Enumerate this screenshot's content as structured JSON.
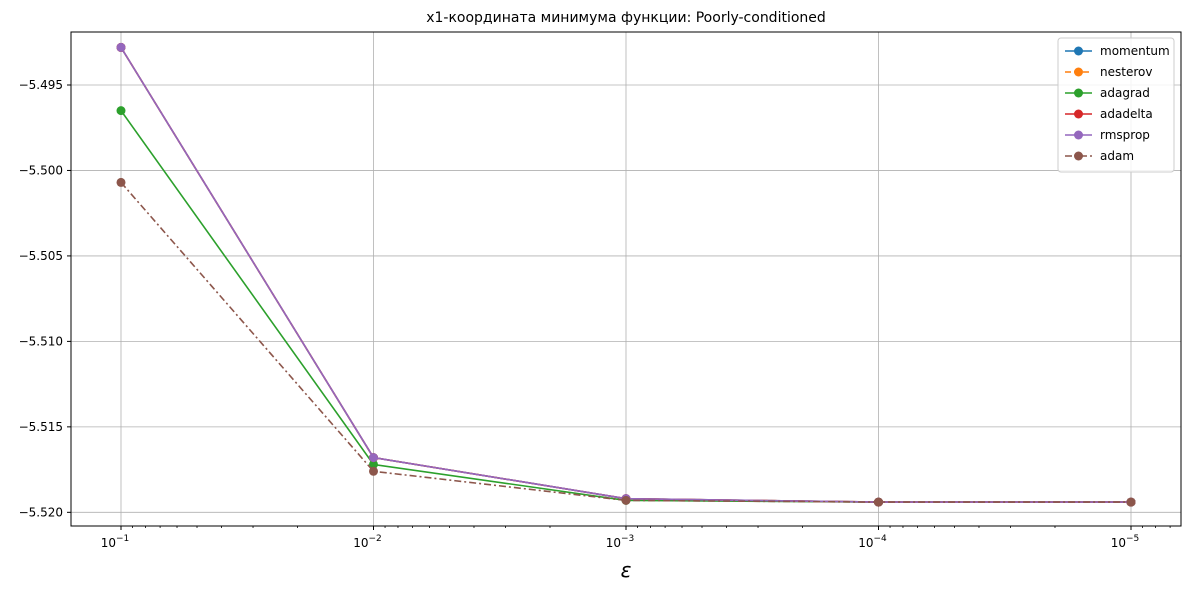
{
  "chart_data": {
    "type": "line",
    "title": "x1-координата минимума функции: Poorly-conditioned",
    "xlabel": "ε",
    "ylabel": "",
    "x_scale": "log",
    "x_inverted": true,
    "x": [
      0.1,
      0.01,
      0.001,
      0.0001,
      1e-05
    ],
    "x_tick_labels": [
      {
        "base": "10",
        "exp": "−1"
      },
      {
        "base": "10",
        "exp": "−2"
      },
      {
        "base": "10",
        "exp": "−3"
      },
      {
        "base": "10",
        "exp": "−4"
      },
      {
        "base": "10",
        "exp": "−5"
      }
    ],
    "y_ticks": [
      -5.495,
      -5.5,
      -5.505,
      -5.51,
      -5.515,
      -5.52
    ],
    "y_tick_labels": [
      "−5.495",
      "−5.500",
      "−5.505",
      "−5.510",
      "−5.515",
      "−5.520"
    ],
    "ylim": [
      -5.5208,
      -5.4919
    ],
    "grid": true,
    "legend_position": "top-right",
    "series": [
      {
        "name": "momentum",
        "color": "#1f77b4",
        "dash": "solid",
        "values": [
          -5.4928,
          -5.5168,
          -5.5192,
          -5.5194,
          -5.5194
        ]
      },
      {
        "name": "nesterov",
        "color": "#ff7f0e",
        "dash": "dashed",
        "values": [
          -5.4928,
          -5.5168,
          -5.5192,
          -5.5194,
          -5.5194
        ]
      },
      {
        "name": "adagrad",
        "color": "#2ca02c",
        "dash": "solid",
        "values": [
          -5.4965,
          -5.5172,
          -5.5193,
          -5.5194,
          -5.5194
        ]
      },
      {
        "name": "adadelta",
        "color": "#d62728",
        "dash": "solid",
        "values": [
          -5.4928,
          -5.5168,
          -5.5192,
          -5.5194,
          -5.5194
        ]
      },
      {
        "name": "rmsprop",
        "color": "#9467bd",
        "dash": "solid",
        "values": [
          -5.4928,
          -5.5168,
          -5.5192,
          -5.5194,
          -5.5194
        ]
      },
      {
        "name": "adam",
        "color": "#8c564b",
        "dash": "dashdot",
        "values": [
          -5.5007,
          -5.5176,
          -5.5193,
          -5.5194,
          -5.5194
        ]
      }
    ]
  }
}
